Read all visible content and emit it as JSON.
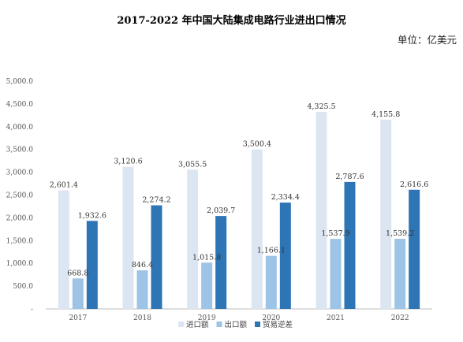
{
  "chart_data": {
    "type": "bar",
    "title": "2017-2022 年中国大陆集成电路行业进出口情况",
    "unit": "单位：亿美元",
    "categories": [
      "2017",
      "2018",
      "2019",
      "2020",
      "2021",
      "2022"
    ],
    "series": [
      {
        "name": "进口额",
        "color": "#dce6f2",
        "values": [
          2601.4,
          3120.6,
          3055.5,
          3500.4,
          4325.5,
          4155.8
        ],
        "labels": [
          "2,601.4",
          "3,120.6",
          "3,055.5",
          "3,500.4",
          "4,325.5",
          "4,155.8"
        ]
      },
      {
        "name": "出口额",
        "color": "#9dc3e6",
        "values": [
          668.8,
          846.4,
          1015.8,
          1166.1,
          1537.9,
          1539.2
        ],
        "labels": [
          "668.8",
          "846.4",
          "1,015.8",
          "1,166.1",
          "1,537.9",
          "1,539.2"
        ]
      },
      {
        "name": "贸易逆差",
        "color": "#2e75b6",
        "values": [
          1932.6,
          2274.2,
          2039.7,
          2334.4,
          2787.6,
          2616.6
        ],
        "labels": [
          "1,932.6",
          "2,274.2",
          "2,039.7",
          "2,334.4",
          "2,787.6",
          "2,616.6"
        ]
      }
    ],
    "y_ticks": [
      0,
      500,
      1000,
      1500,
      2000,
      2500,
      3000,
      3500,
      4000,
      4500,
      5000
    ],
    "y_tick_labels": [
      "-",
      "500.0",
      "1,000.0",
      "1,500.0",
      "2,000.0",
      "2,500.0",
      "3,000.0",
      "3,500.0",
      "4,000.0",
      "4,500.0",
      "5,000.0"
    ],
    "ylim": [
      0,
      5000
    ],
    "grid": false,
    "legend_position": "bottom"
  }
}
